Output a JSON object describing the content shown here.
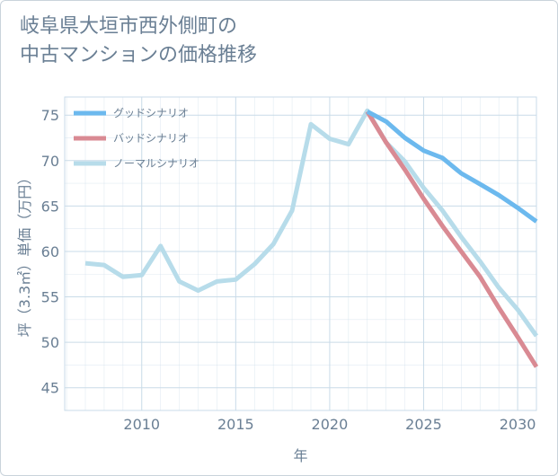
{
  "title": {
    "line1": "岐阜県大垣市西外側町の",
    "line2": "中古マンションの価格推移"
  },
  "colors": {
    "good": "#6cb9ee",
    "bad": "#d98a93",
    "normal": "#b7dcea",
    "grid": "#c9dbe8",
    "text": "#6a7f94"
  },
  "chart_data": {
    "type": "line",
    "title": "岐阜県大垣市西外側町の中古マンションの価格推移",
    "xlabel": "年",
    "ylabel": "坪（3.3㎡）単価（万円）",
    "xlim": [
      2005.9,
      2031
    ],
    "ylim": [
      42.5,
      77
    ],
    "xticks": [
      2010,
      2015,
      2020,
      2025,
      2030
    ],
    "yticks": [
      45,
      50,
      55,
      60,
      65,
      70,
      75
    ],
    "legend_position": "top-left",
    "series": [
      {
        "key": "good",
        "name": "グッドシナリオ",
        "x": [
          2022,
          2023,
          2024,
          2025,
          2026,
          2027,
          2028,
          2029,
          2030,
          2031
        ],
        "y": [
          75.4,
          74.3,
          72.5,
          71.1,
          70.3,
          68.6,
          67.4,
          66.2,
          64.8,
          63.3
        ]
      },
      {
        "key": "bad",
        "name": "バッドシナリオ",
        "x": [
          2022,
          2023,
          2024,
          2025,
          2026,
          2027,
          2028,
          2029,
          2030,
          2031
        ],
        "y": [
          75.4,
          72.0,
          69.0,
          65.8,
          62.8,
          60.0,
          57.2,
          53.8,
          50.6,
          47.3
        ]
      },
      {
        "key": "normal",
        "name": "ノーマルシナリオ",
        "x": [
          2007,
          2008,
          2009,
          2010,
          2011,
          2012,
          2013,
          2014,
          2015,
          2016,
          2017,
          2018,
          2019,
          2020,
          2021,
          2022,
          2023,
          2024,
          2025,
          2026,
          2027,
          2028,
          2029,
          2030,
          2031
        ],
        "y": [
          58.7,
          58.5,
          57.2,
          57.4,
          60.6,
          56.7,
          55.7,
          56.7,
          56.9,
          58.6,
          60.8,
          64.5,
          74.0,
          72.4,
          71.8,
          75.5,
          72.0,
          69.9,
          67.0,
          64.5,
          61.6,
          58.9,
          56.0,
          53.6,
          50.7
        ]
      }
    ]
  }
}
